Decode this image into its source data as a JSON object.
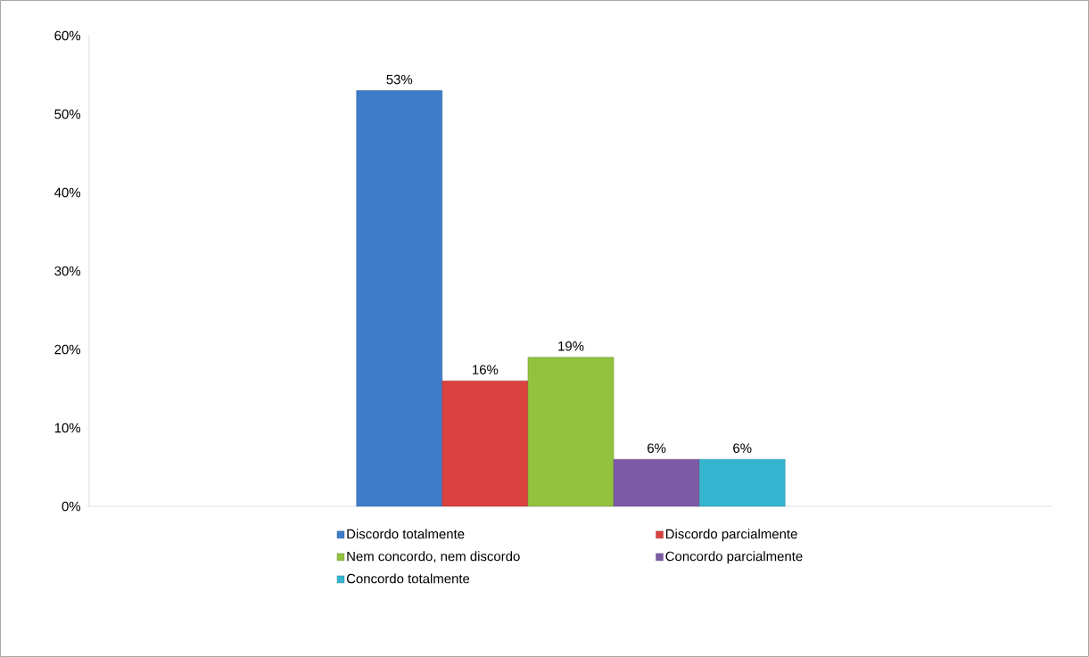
{
  "chart_data": {
    "type": "bar",
    "categories": [
      null
    ],
    "series": [
      {
        "name": "Discordo totalmente",
        "color": "#3d7cc9",
        "values": [
          53
        ],
        "value_labels": [
          "53%"
        ]
      },
      {
        "name": "Discordo parcialmente",
        "color": "#d9423f",
        "values": [
          16
        ],
        "value_labels": [
          "16%"
        ]
      },
      {
        "name": "Nem concordo, nem discordo",
        "color": "#93c23f",
        "values": [
          19
        ],
        "value_labels": [
          "19%"
        ]
      },
      {
        "name": "Concordo parcialmente",
        "color": "#7d5aa6",
        "values": [
          6
        ],
        "value_labels": [
          "6%"
        ]
      },
      {
        "name": "Concordo totalmente",
        "color": "#35b5cf",
        "values": [
          6
        ],
        "value_labels": [
          "6%"
        ]
      }
    ],
    "ylim": [
      0,
      60
    ],
    "yticks": [
      {
        "value": 0,
        "label": "0%"
      },
      {
        "value": 10,
        "label": "10%"
      },
      {
        "value": 20,
        "label": "20%"
      },
      {
        "value": 30,
        "label": "30%"
      },
      {
        "value": 40,
        "label": "40%"
      },
      {
        "value": 50,
        "label": "50%"
      },
      {
        "value": 60,
        "label": "60%"
      }
    ],
    "grid": false,
    "legend": "bottom"
  }
}
